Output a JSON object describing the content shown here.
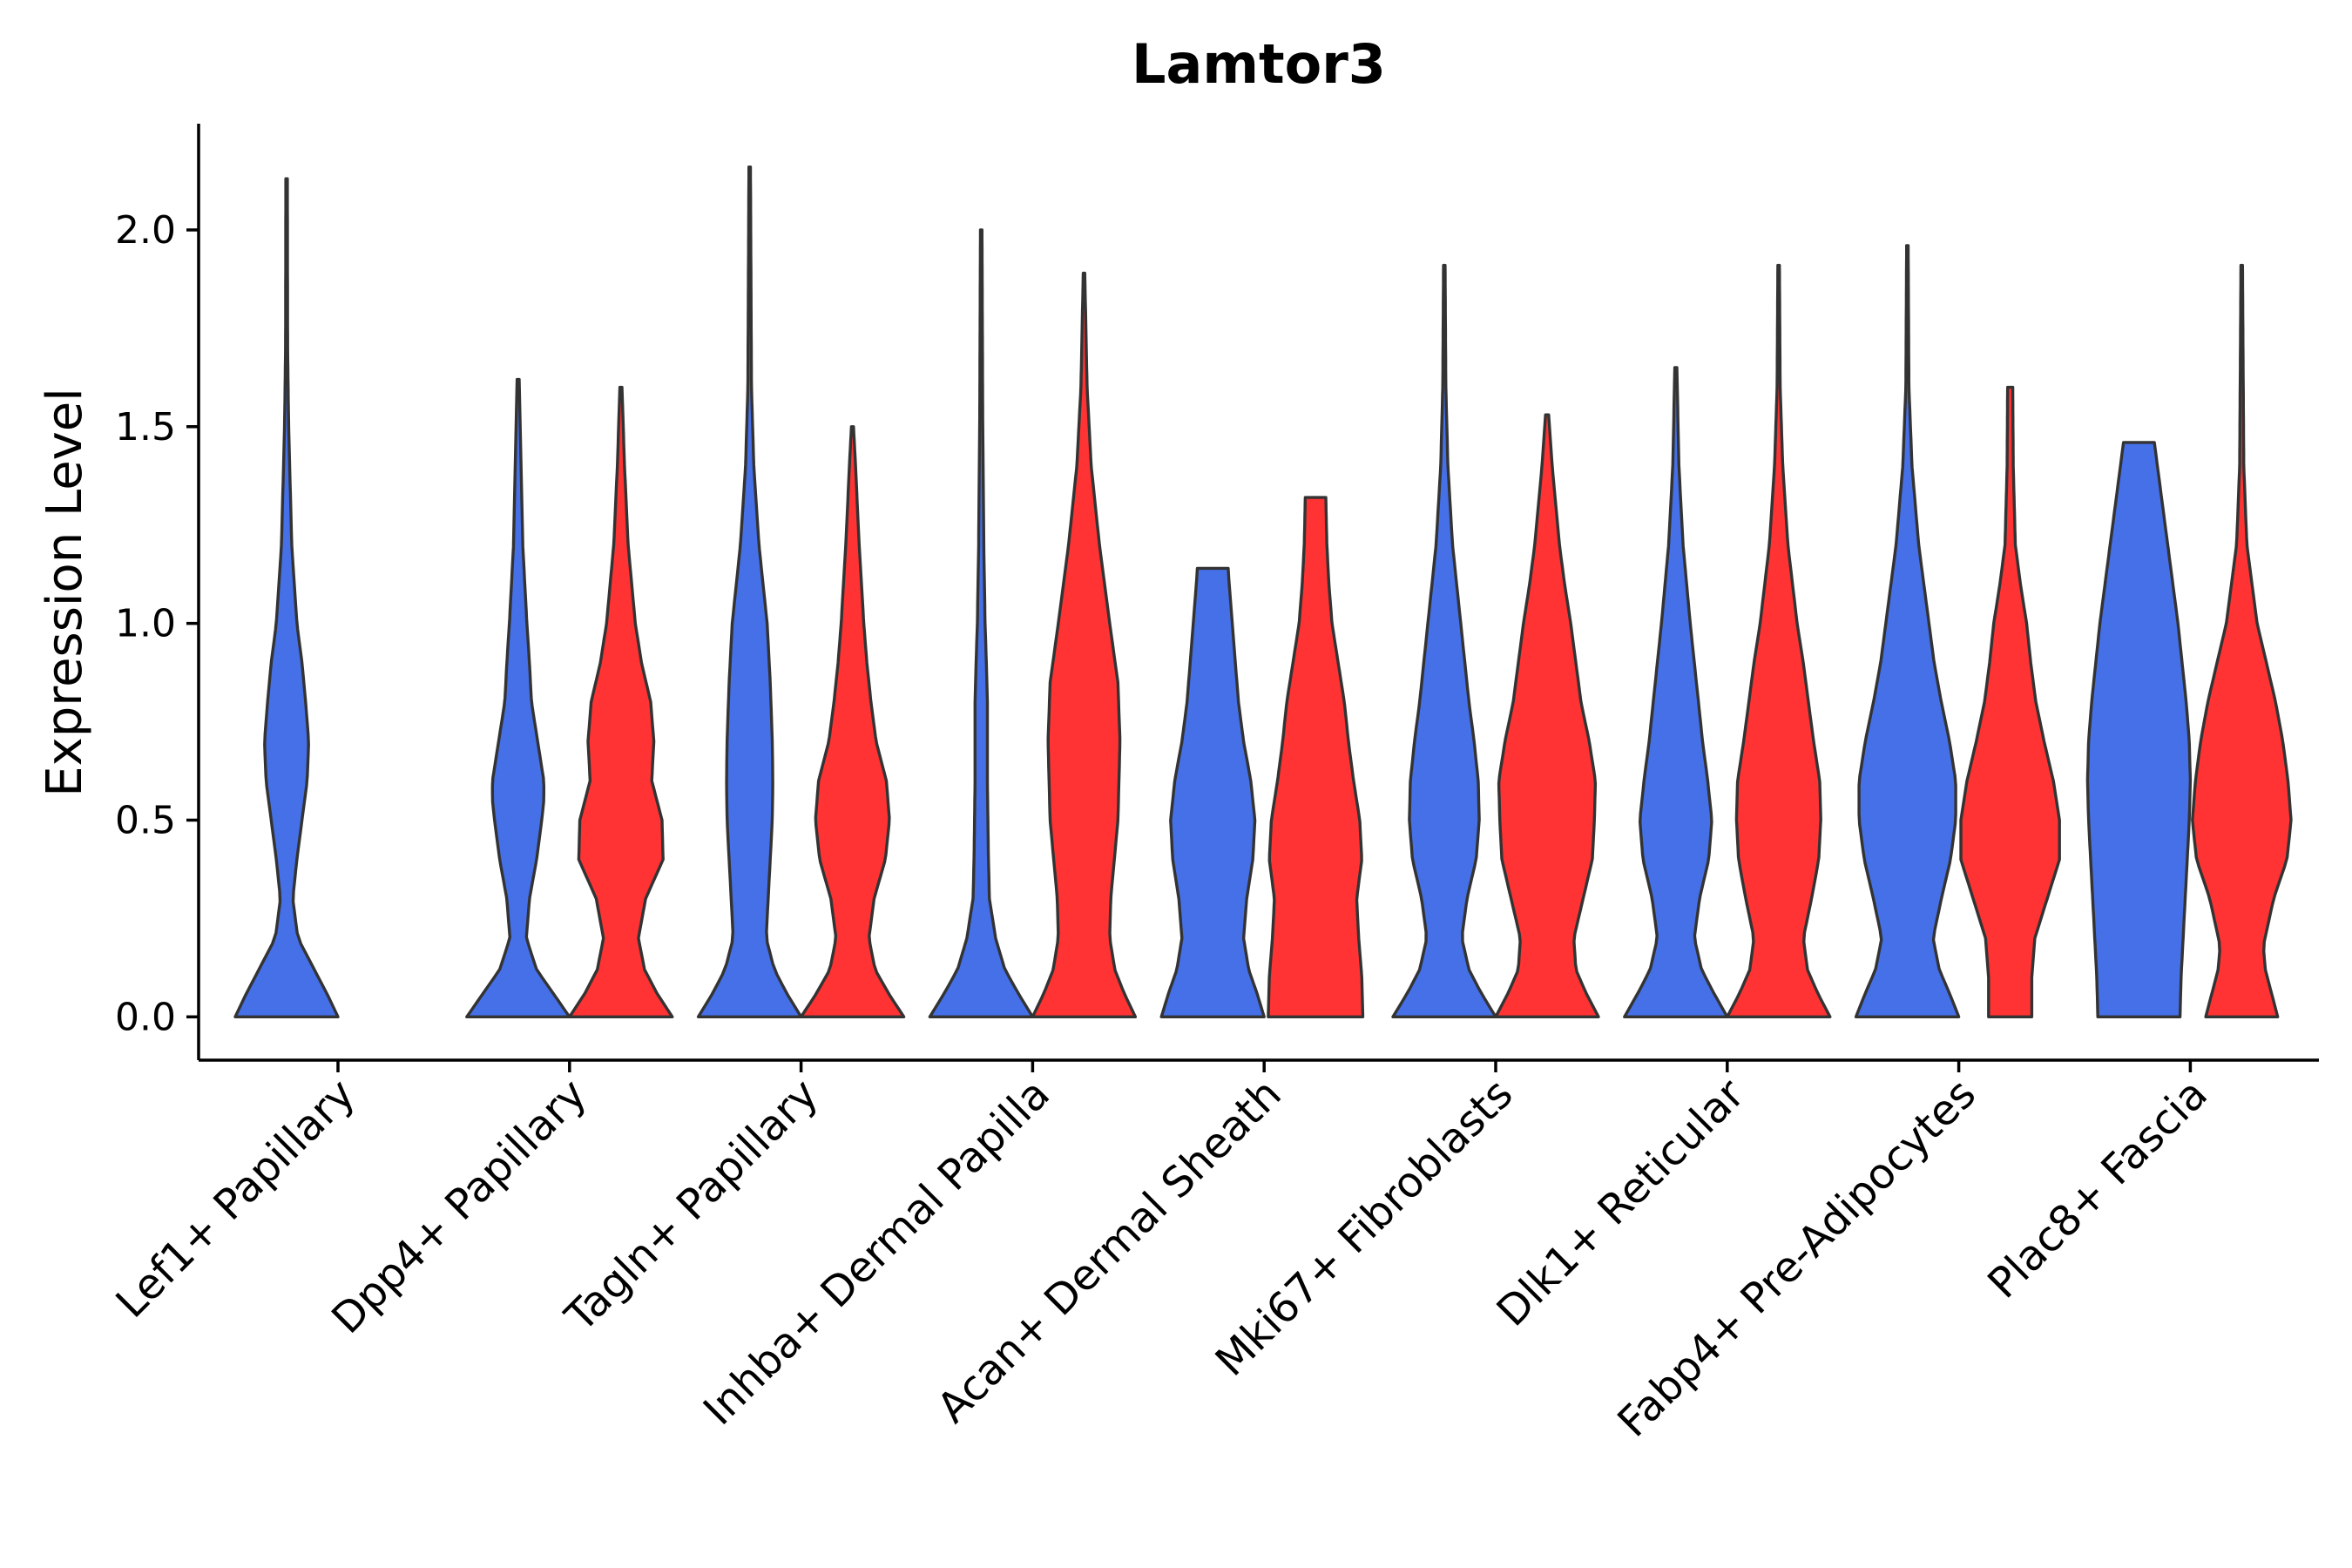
{
  "chart_data": {
    "type": "violin",
    "title": "Lamtor3",
    "xlabel": "",
    "ylabel": "Expression Level",
    "ylim": [
      -0.11,
      2.27
    ],
    "yticks": [
      {
        "value": 0.0,
        "label": "0.0"
      },
      {
        "value": 0.5,
        "label": "0.5"
      },
      {
        "value": 1.0,
        "label": "1.0"
      },
      {
        "value": 1.5,
        "label": "1.5"
      },
      {
        "value": 2.0,
        "label": "2.0"
      }
    ],
    "categories": [
      "Lef1+ Papillary",
      "Dpp4+ Papillary",
      "Tagln+ Papillary",
      "Inhba+ Dermal Papilla",
      "Acan+ Dermal Sheath",
      "Mki67+ Fibroblasts",
      "Dlk1+ Reticular",
      "Fabp4+ Pre-Adipocytes",
      "Plac8+ Fascia"
    ],
    "colors": {
      "group1": "#4570E8",
      "group2": "#FF3333"
    },
    "violins": [
      {
        "category": 0,
        "group": "group1",
        "max": 2.13,
        "profile": [
          [
            0,
            1.0
          ],
          [
            0.05,
            0.82
          ],
          [
            0.1,
            0.62
          ],
          [
            0.2,
            0.22
          ],
          [
            0.3,
            0.12
          ],
          [
            0.4,
            0.2
          ],
          [
            0.5,
            0.3
          ],
          [
            0.6,
            0.4
          ],
          [
            0.7,
            0.43
          ],
          [
            0.8,
            0.37
          ],
          [
            0.9,
            0.3
          ],
          [
            1.0,
            0.2
          ],
          [
            1.2,
            0.1
          ],
          [
            1.5,
            0.04
          ],
          [
            1.7,
            0.02
          ],
          [
            2.13,
            0.015
          ]
        ]
      },
      {
        "category": 1,
        "group": "group1",
        "max": 1.62,
        "profile": [
          [
            0,
            1.0
          ],
          [
            0.06,
            0.68
          ],
          [
            0.12,
            0.36
          ],
          [
            0.2,
            0.16
          ],
          [
            0.3,
            0.22
          ],
          [
            0.4,
            0.36
          ],
          [
            0.5,
            0.46
          ],
          [
            0.55,
            0.5
          ],
          [
            0.6,
            0.5
          ],
          [
            0.7,
            0.38
          ],
          [
            0.8,
            0.26
          ],
          [
            0.9,
            0.22
          ],
          [
            1.0,
            0.17
          ],
          [
            1.2,
            0.09
          ],
          [
            1.5,
            0.04
          ],
          [
            1.62,
            0.02
          ]
        ]
      },
      {
        "category": 1,
        "group": "group2",
        "max": 1.6,
        "profile": [
          [
            0,
            1.0
          ],
          [
            0.06,
            0.7
          ],
          [
            0.12,
            0.46
          ],
          [
            0.2,
            0.34
          ],
          [
            0.3,
            0.48
          ],
          [
            0.4,
            0.82
          ],
          [
            0.5,
            0.8
          ],
          [
            0.6,
            0.6
          ],
          [
            0.7,
            0.64
          ],
          [
            0.8,
            0.58
          ],
          [
            0.9,
            0.4
          ],
          [
            1.0,
            0.28
          ],
          [
            1.2,
            0.14
          ],
          [
            1.4,
            0.07
          ],
          [
            1.6,
            0.02
          ]
        ]
      },
      {
        "category": 2,
        "group": "group1",
        "max": 2.16,
        "profile": [
          [
            0,
            1.0
          ],
          [
            0.06,
            0.72
          ],
          [
            0.12,
            0.48
          ],
          [
            0.2,
            0.32
          ],
          [
            0.3,
            0.36
          ],
          [
            0.5,
            0.44
          ],
          [
            0.6,
            0.45
          ],
          [
            0.7,
            0.44
          ],
          [
            0.85,
            0.4
          ],
          [
            1.0,
            0.34
          ],
          [
            1.2,
            0.18
          ],
          [
            1.4,
            0.08
          ],
          [
            1.6,
            0.035
          ],
          [
            2.16,
            0.015
          ]
        ]
      },
      {
        "category": 2,
        "group": "group2",
        "max": 1.5,
        "profile": [
          [
            0,
            1.0
          ],
          [
            0.06,
            0.7
          ],
          [
            0.12,
            0.44
          ],
          [
            0.2,
            0.32
          ],
          [
            0.3,
            0.42
          ],
          [
            0.4,
            0.64
          ],
          [
            0.5,
            0.72
          ],
          [
            0.6,
            0.66
          ],
          [
            0.7,
            0.46
          ],
          [
            0.8,
            0.36
          ],
          [
            0.9,
            0.28
          ],
          [
            1.0,
            0.22
          ],
          [
            1.2,
            0.13
          ],
          [
            1.4,
            0.06
          ],
          [
            1.5,
            0.02
          ]
        ]
      },
      {
        "category": 3,
        "group": "group1",
        "max": 2.0,
        "profile": [
          [
            0,
            1.0
          ],
          [
            0.06,
            0.72
          ],
          [
            0.12,
            0.46
          ],
          [
            0.2,
            0.28
          ],
          [
            0.3,
            0.16
          ],
          [
            0.4,
            0.14
          ],
          [
            0.6,
            0.12
          ],
          [
            0.8,
            0.12
          ],
          [
            0.9,
            0.1
          ],
          [
            1.0,
            0.075
          ],
          [
            1.2,
            0.05
          ],
          [
            1.5,
            0.03
          ],
          [
            2.0,
            0.015
          ]
        ]
      },
      {
        "category": 3,
        "group": "group2",
        "max": 1.89,
        "profile": [
          [
            0,
            1.0
          ],
          [
            0.06,
            0.78
          ],
          [
            0.12,
            0.6
          ],
          [
            0.2,
            0.5
          ],
          [
            0.3,
            0.52
          ],
          [
            0.5,
            0.66
          ],
          [
            0.7,
            0.7
          ],
          [
            0.85,
            0.66
          ],
          [
            1.0,
            0.5
          ],
          [
            1.2,
            0.3
          ],
          [
            1.4,
            0.14
          ],
          [
            1.6,
            0.06
          ],
          [
            1.89,
            0.015
          ]
        ]
      },
      {
        "category": 4,
        "group": "group1",
        "max": 1.14,
        "profile": [
          [
            0,
            1.0
          ],
          [
            0.06,
            0.86
          ],
          [
            0.12,
            0.7
          ],
          [
            0.2,
            0.6
          ],
          [
            0.3,
            0.66
          ],
          [
            0.4,
            0.78
          ],
          [
            0.5,
            0.82
          ],
          [
            0.6,
            0.74
          ],
          [
            0.7,
            0.6
          ],
          [
            0.8,
            0.5
          ],
          [
            0.9,
            0.44
          ],
          [
            1.0,
            0.38
          ],
          [
            1.1,
            0.32
          ],
          [
            1.14,
            0.3
          ]
        ]
      },
      {
        "category": 4,
        "group": "group2",
        "max": 1.32,
        "profile": [
          [
            0,
            0.92
          ],
          [
            0.1,
            0.9
          ],
          [
            0.2,
            0.84
          ],
          [
            0.3,
            0.8
          ],
          [
            0.4,
            0.9
          ],
          [
            0.5,
            0.86
          ],
          [
            0.6,
            0.74
          ],
          [
            0.7,
            0.64
          ],
          [
            0.8,
            0.56
          ],
          [
            0.9,
            0.44
          ],
          [
            1.0,
            0.32
          ],
          [
            1.1,
            0.26
          ],
          [
            1.2,
            0.22
          ],
          [
            1.32,
            0.2
          ]
        ]
      },
      {
        "category": 5,
        "group": "group1",
        "max": 1.91,
        "profile": [
          [
            0,
            1.0
          ],
          [
            0.06,
            0.72
          ],
          [
            0.12,
            0.48
          ],
          [
            0.2,
            0.34
          ],
          [
            0.3,
            0.44
          ],
          [
            0.4,
            0.62
          ],
          [
            0.5,
            0.68
          ],
          [
            0.6,
            0.66
          ],
          [
            0.7,
            0.58
          ],
          [
            0.8,
            0.48
          ],
          [
            0.9,
            0.4
          ],
          [
            1.0,
            0.32
          ],
          [
            1.2,
            0.16
          ],
          [
            1.4,
            0.07
          ],
          [
            1.6,
            0.03
          ],
          [
            1.91,
            0.015
          ]
        ]
      },
      {
        "category": 5,
        "group": "group2",
        "max": 1.53,
        "profile": [
          [
            0,
            1.0
          ],
          [
            0.06,
            0.76
          ],
          [
            0.12,
            0.56
          ],
          [
            0.2,
            0.52
          ],
          [
            0.3,
            0.7
          ],
          [
            0.4,
            0.88
          ],
          [
            0.5,
            0.92
          ],
          [
            0.6,
            0.94
          ],
          [
            0.7,
            0.82
          ],
          [
            0.8,
            0.66
          ],
          [
            0.9,
            0.56
          ],
          [
            1.0,
            0.46
          ],
          [
            1.1,
            0.34
          ],
          [
            1.2,
            0.24
          ],
          [
            1.4,
            0.1
          ],
          [
            1.53,
            0.03
          ]
        ]
      },
      {
        "category": 6,
        "group": "group1",
        "max": 1.65,
        "profile": [
          [
            0,
            1.0
          ],
          [
            0.06,
            0.74
          ],
          [
            0.12,
            0.5
          ],
          [
            0.2,
            0.36
          ],
          [
            0.3,
            0.46
          ],
          [
            0.4,
            0.64
          ],
          [
            0.5,
            0.7
          ],
          [
            0.6,
            0.62
          ],
          [
            0.7,
            0.52
          ],
          [
            0.8,
            0.44
          ],
          [
            0.9,
            0.36
          ],
          [
            1.0,
            0.28
          ],
          [
            1.2,
            0.14
          ],
          [
            1.4,
            0.06
          ],
          [
            1.65,
            0.02
          ]
        ]
      },
      {
        "category": 6,
        "group": "group2",
        "max": 1.91,
        "profile": [
          [
            0,
            1.0
          ],
          [
            0.06,
            0.76
          ],
          [
            0.12,
            0.56
          ],
          [
            0.2,
            0.48
          ],
          [
            0.3,
            0.64
          ],
          [
            0.4,
            0.78
          ],
          [
            0.5,
            0.82
          ],
          [
            0.6,
            0.8
          ],
          [
            0.7,
            0.68
          ],
          [
            0.8,
            0.58
          ],
          [
            0.9,
            0.48
          ],
          [
            1.0,
            0.36
          ],
          [
            1.2,
            0.18
          ],
          [
            1.4,
            0.08
          ],
          [
            1.6,
            0.03
          ],
          [
            1.91,
            0.015
          ]
        ]
      },
      {
        "category": 7,
        "group": "group1",
        "max": 1.96,
        "profile": [
          [
            0,
            1.0
          ],
          [
            0.06,
            0.82
          ],
          [
            0.12,
            0.62
          ],
          [
            0.2,
            0.5
          ],
          [
            0.3,
            0.66
          ],
          [
            0.4,
            0.84
          ],
          [
            0.5,
            0.94
          ],
          [
            0.6,
            0.94
          ],
          [
            0.7,
            0.82
          ],
          [
            0.8,
            0.66
          ],
          [
            0.9,
            0.52
          ],
          [
            1.0,
            0.42
          ],
          [
            1.2,
            0.22
          ],
          [
            1.4,
            0.09
          ],
          [
            1.6,
            0.03
          ],
          [
            1.96,
            0.015
          ]
        ]
      },
      {
        "category": 7,
        "group": "group2",
        "max": 1.6,
        "profile": [
          [
            0,
            0.42
          ],
          [
            0.1,
            0.42
          ],
          [
            0.2,
            0.48
          ],
          [
            0.3,
            0.72
          ],
          [
            0.4,
            0.96
          ],
          [
            0.5,
            0.96
          ],
          [
            0.6,
            0.84
          ],
          [
            0.7,
            0.66
          ],
          [
            0.8,
            0.5
          ],
          [
            0.9,
            0.4
          ],
          [
            1.0,
            0.32
          ],
          [
            1.1,
            0.2
          ],
          [
            1.2,
            0.1
          ],
          [
            1.4,
            0.06
          ],
          [
            1.6,
            0.05
          ]
        ]
      },
      {
        "category": 8,
        "group": "group1",
        "max": 1.46,
        "profile": [
          [
            0,
            0.8
          ],
          [
            0.1,
            0.82
          ],
          [
            0.2,
            0.86
          ],
          [
            0.3,
            0.9
          ],
          [
            0.4,
            0.94
          ],
          [
            0.5,
            0.98
          ],
          [
            0.6,
            1.0
          ],
          [
            0.7,
            0.98
          ],
          [
            0.8,
            0.92
          ],
          [
            0.9,
            0.84
          ],
          [
            1.0,
            0.76
          ],
          [
            1.1,
            0.66
          ],
          [
            1.2,
            0.56
          ],
          [
            1.3,
            0.46
          ],
          [
            1.4,
            0.36
          ],
          [
            1.46,
            0.3
          ]
        ]
      },
      {
        "category": 8,
        "group": "group2",
        "max": 1.91,
        "profile": [
          [
            0,
            0.7
          ],
          [
            0.06,
            0.58
          ],
          [
            0.12,
            0.46
          ],
          [
            0.18,
            0.42
          ],
          [
            0.3,
            0.62
          ],
          [
            0.4,
            0.88
          ],
          [
            0.5,
            0.96
          ],
          [
            0.6,
            0.9
          ],
          [
            0.7,
            0.8
          ],
          [
            0.8,
            0.66
          ],
          [
            0.9,
            0.48
          ],
          [
            1.0,
            0.3
          ],
          [
            1.2,
            0.1
          ],
          [
            1.4,
            0.04
          ],
          [
            1.91,
            0.015
          ]
        ]
      }
    ]
  }
}
